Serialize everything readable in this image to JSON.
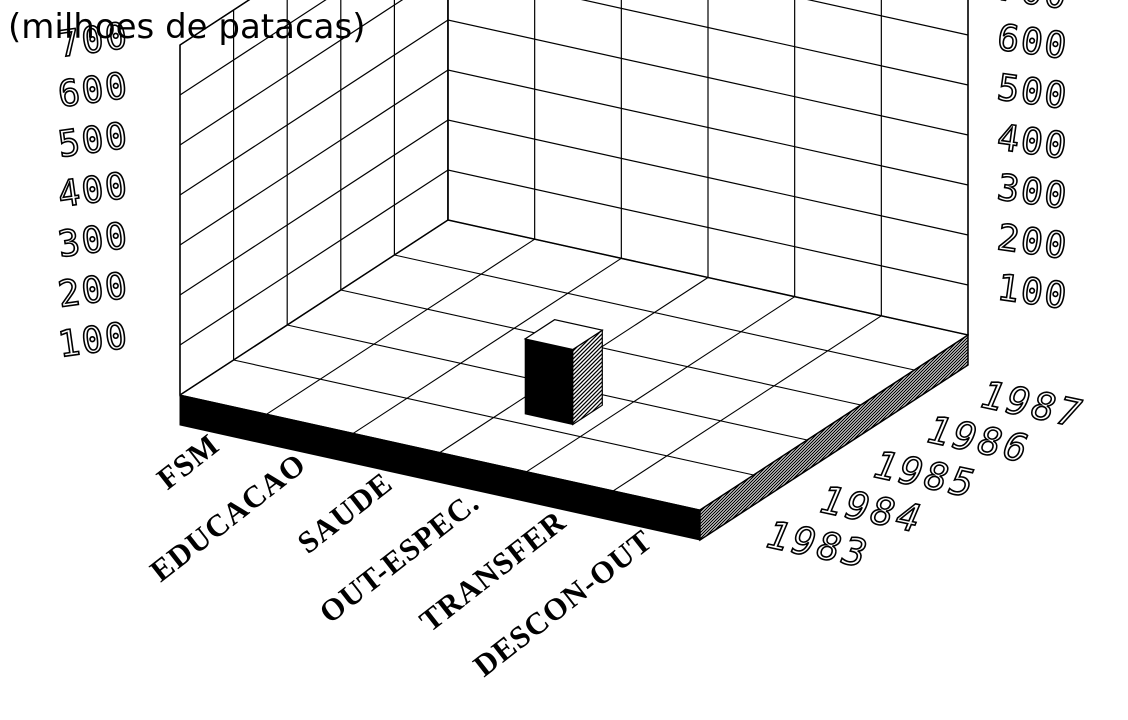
{
  "chart_data": {
    "type": "bar",
    "subtype": "3d-grid",
    "unit_label": "(milhoes de patacas)",
    "categories": [
      "FSM",
      "EDUCACAO",
      "SAUDE",
      "OUT-ESPEC.",
      "TRANSFER",
      "DESCON-OUT"
    ],
    "series": [
      {
        "name": "1983",
        "values": [
          0,
          0,
          0,
          0,
          0,
          0
        ]
      },
      {
        "name": "1984",
        "values": [
          0,
          0,
          0,
          150,
          0,
          0
        ]
      },
      {
        "name": "1985",
        "values": [
          0,
          0,
          0,
          0,
          0,
          0
        ]
      },
      {
        "name": "1986",
        "values": [
          0,
          0,
          0,
          0,
          0,
          0
        ]
      },
      {
        "name": "1987",
        "values": [
          0,
          0,
          0,
          0,
          0,
          0
        ]
      }
    ],
    "yticks": [
      "100",
      "200",
      "300",
      "400",
      "500",
      "600",
      "700"
    ],
    "ylim": [
      0,
      700
    ],
    "grid": true
  }
}
